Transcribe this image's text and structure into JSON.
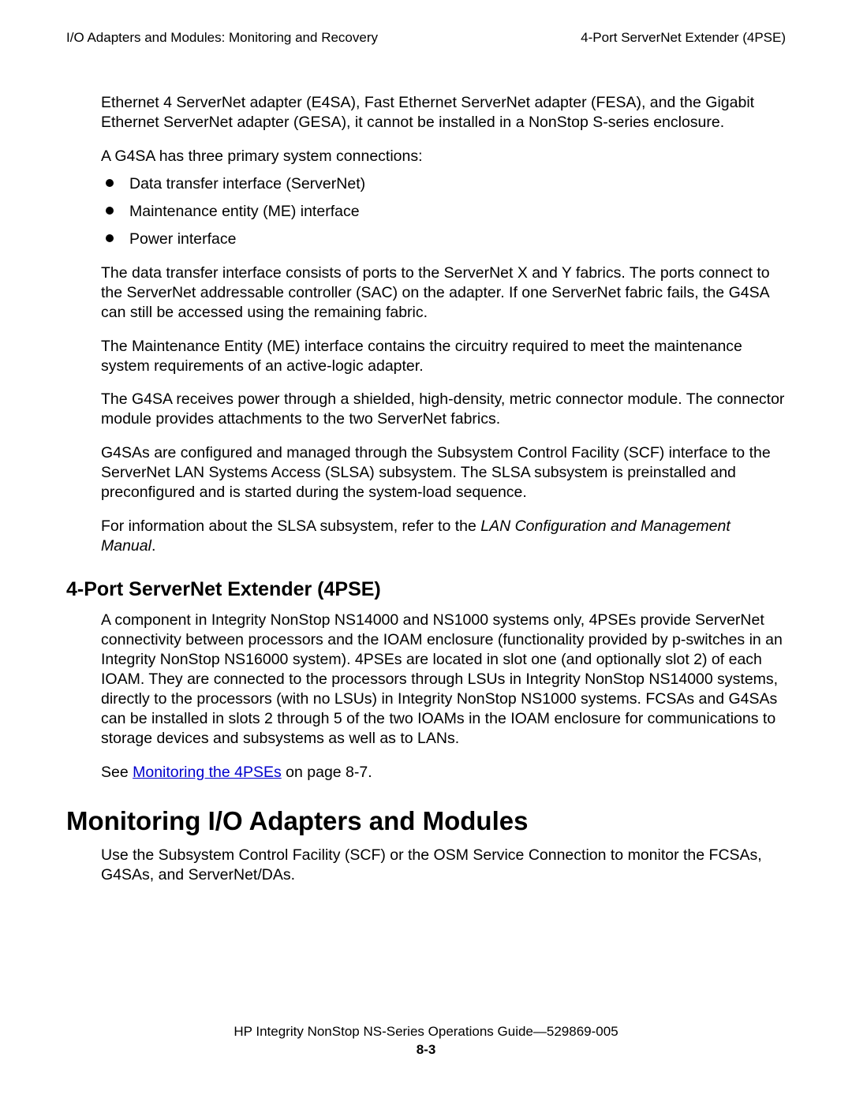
{
  "header": {
    "left": "I/O Adapters and Modules: Monitoring and Recovery",
    "right": "4-Port ServerNet Extender (4PSE)"
  },
  "body": {
    "p1": "Ethernet 4 ServerNet adapter (E4SA), Fast Ethernet ServerNet adapter (FESA), and the Gigabit Ethernet ServerNet adapter (GESA), it cannot be installed in a NonStop S-series enclosure.",
    "p2": "A G4SA has three primary system connections:",
    "bullets": [
      "Data transfer interface (ServerNet)",
      "Maintenance entity (ME) interface",
      "Power interface"
    ],
    "p3": "The data transfer interface consists of ports to the ServerNet X and Y fabrics. The ports connect to the ServerNet addressable controller (SAC) on the adapter. If one ServerNet fabric fails, the G4SA can still be accessed using the remaining fabric.",
    "p4": "The Maintenance Entity (ME) interface contains the circuitry required to meet the maintenance system requirements of an active-logic adapter.",
    "p5": "The G4SA receives power through a shielded, high-density, metric connector module. The connector module provides attachments to the two ServerNet fabrics.",
    "p6": "G4SAs are configured and managed through the Subsystem Control Facility (SCF) interface to the ServerNet LAN Systems Access (SLSA) subsystem. The SLSA subsystem is preinstalled and preconfigured and is started during the system-load sequence.",
    "p7a": "For information about the SLSA subsystem, refer to the ",
    "p7b": "LAN Configuration and Management Manual",
    "p7c": ".",
    "h2": "4-Port ServerNet Extender (4PSE)",
    "p8": "A component in Integrity NonStop NS14000 and NS1000 systems only, 4PSEs provide ServerNet connectivity between processors and the IOAM enclosure (functionality provided by p-switches in an Integrity NonStop NS16000 system). 4PSEs are located in slot one (and optionally slot 2) of each IOAM. They are connected to the processors through LSUs in Integrity NonStop NS14000 systems, directly to the processors (with no LSUs) in Integrity NonStop NS1000 systems. FCSAs and G4SAs can be installed in slots 2 through 5 of the two  IOAMs in the IOAM enclosure for communications to storage devices and subsystems as well as to LANs.",
    "p9a": "See ",
    "p9link": "Monitoring the 4PSEs",
    "p9b": " on page 8-7.",
    "h1": "Monitoring I/O Adapters and Modules",
    "p10": "Use the Subsystem Control Facility (SCF) or the OSM Service Connection to monitor the FCSAs, G4SAs, and ServerNet/DAs."
  },
  "footer": {
    "line1a": "HP Integrity NonStop NS-Series Operations Guide",
    "line1b": "—",
    "line1c": "529869-005",
    "pagenum": "8-3"
  },
  "colors": {
    "link": "#0000cc",
    "text": "#000000",
    "background": "#ffffff"
  }
}
